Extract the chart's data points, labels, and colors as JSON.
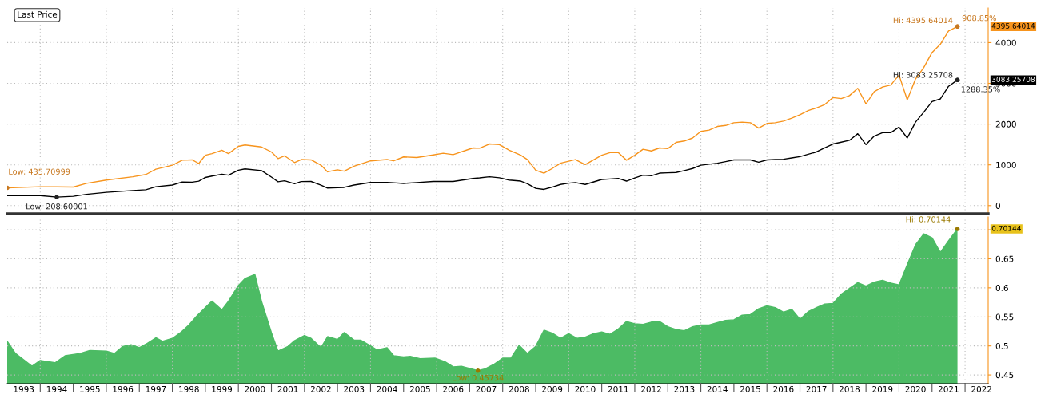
{
  "chart_data": [
    {
      "type": "area",
      "xlim": [
        1993.0,
        2022.7
      ],
      "ylim": [
        -200,
        4850
      ],
      "xticks": [
        {
          "value": 1994,
          "label": null
        },
        {
          "value": 1996,
          "label": null
        },
        {
          "value": 1998,
          "label": null
        },
        {
          "value": 2000,
          "label": null
        },
        {
          "value": 2002,
          "label": null
        },
        {
          "value": 2004,
          "label": null
        },
        {
          "value": 2006,
          "label": null
        },
        {
          "value": 2008,
          "label": null
        },
        {
          "value": 2010,
          "label": null
        },
        {
          "value": 2012,
          "label": null
        },
        {
          "value": 2014,
          "label": null
        },
        {
          "value": 2016,
          "label": null
        },
        {
          "value": 2018,
          "label": null
        },
        {
          "value": 2020,
          "label": null
        },
        {
          "value": 2022,
          "label": null
        }
      ],
      "yticks": [
        0,
        1000,
        2000,
        3000,
        4000
      ],
      "tick_labels": "y",
      "grid": true,
      "x": [
        1993.0,
        1994.0,
        1994.5,
        1995.0,
        1995.4,
        1996.0,
        1996.8,
        1997.2,
        1997.5,
        1998.0,
        1998.3,
        1998.6,
        1998.8,
        1999.0,
        1999.2,
        1999.5,
        1999.7,
        2000.0,
        2000.2,
        2000.7,
        2001.0,
        2001.2,
        2001.4,
        2001.7,
        2001.9,
        2002.2,
        2002.5,
        2002.7,
        2003.0,
        2003.2,
        2003.5,
        2004.0,
        2004.5,
        2004.7,
        2005.0,
        2005.4,
        2005.9,
        2006.2,
        2006.5,
        2007.1,
        2007.3,
        2007.6,
        2007.9,
        2008.2,
        2008.55,
        2008.75,
        2009.0,
        2009.25,
        2009.5,
        2009.75,
        2010.0,
        2010.2,
        2010.5,
        2011.0,
        2011.25,
        2011.5,
        2011.75,
        2012.0,
        2012.25,
        2012.5,
        2012.75,
        2013.0,
        2013.25,
        2013.5,
        2013.75,
        2014.0,
        2014.25,
        2014.5,
        2014.75,
        2015.0,
        2015.25,
        2015.5,
        2015.75,
        2016.0,
        2016.25,
        2016.5,
        2016.75,
        2017.0,
        2017.25,
        2017.5,
        2017.75,
        2018.0,
        2018.25,
        2018.5,
        2018.75,
        2019.0,
        2019.25,
        2019.5,
        2019.75,
        2020.0,
        2020.25,
        2020.5,
        2020.75,
        2021.0,
        2021.25,
        2021.5,
        2021.77
      ],
      "series": [
        {
          "type": "line",
          "color": "#f7941d",
          "values": [
            435.70999,
            463,
            460,
            455,
            545,
            626,
            707,
            764,
            894,
            992,
            1114,
            1122,
            1033,
            1236,
            1276,
            1358,
            1276,
            1455,
            1488,
            1439,
            1317,
            1154,
            1220,
            1057,
            1130,
            1122,
            992,
            829,
            878,
            846,
            967,
            1098,
            1130,
            1098,
            1195,
            1179,
            1244,
            1285,
            1252,
            1415,
            1407,
            1512,
            1496,
            1358,
            1236,
            1130,
            870,
            797,
            911,
            1041,
            1089,
            1130,
            1008,
            1236,
            1301,
            1301,
            1114,
            1236,
            1382,
            1341,
            1415,
            1398,
            1553,
            1585,
            1659,
            1821,
            1854,
            1943,
            1967,
            2033,
            2049,
            2033,
            1902,
            2016,
            2033,
            2073,
            2146,
            2228,
            2333,
            2398,
            2480,
            2650,
            2626,
            2699,
            2878,
            2496,
            2797,
            2911,
            2959,
            3203,
            2593,
            3106,
            3390,
            3756,
            3959,
            4285,
            4395.64014
          ]
        },
        {
          "type": "line",
          "color": "#000000",
          "values": [
            244,
            244,
            208.60001,
            228,
            276,
            325,
            370,
            390,
            463,
            504,
            580,
            575,
            600,
            691,
            725,
            772,
            748,
            870,
            900,
            860,
            700,
            585,
            610,
            537,
            590,
            593,
            504,
            431,
            440,
            447,
            504,
            569,
            569,
            560,
            545,
            565,
            593,
            593,
            593,
            667,
            680,
            707,
            683,
            626,
            602,
            537,
            423,
            398,
            455,
            520,
            550,
            565,
            520,
            642,
            655,
            667,
            602,
            680,
            748,
            732,
            797,
            805,
            813,
            860,
            911,
            992,
            1015,
            1041,
            1080,
            1122,
            1122,
            1122,
            1065,
            1122,
            1130,
            1138,
            1170,
            1203,
            1260,
            1317,
            1415,
            1512,
            1557,
            1602,
            1764,
            1496,
            1707,
            1789,
            1789,
            1927,
            1659,
            2049,
            2293,
            2553,
            2618,
            2927,
            3083.25708
          ]
        }
      ],
      "annotations": [
        "Last Price",
        {
          "text": "Hi: 4395.64014",
          "x": 2021.77,
          "y": 4395.64014
        },
        {
          "text": "908.85%",
          "x": 2021.77,
          "y": 4395.64014
        },
        "4395.64014",
        {
          "text": "Hi: 3083.25708",
          "x": 2021.77,
          "y": 3083.25708
        },
        {
          "text": "1288.35%",
          "x": 2021.77,
          "y": 3083.25708
        },
        "3083.25708",
        {
          "text": "Low: 208.60001",
          "x": 1994.5,
          "y": 208.60001
        },
        {
          "text": "Low: 435.70999",
          "x": 1993.0,
          "y": 435.70999
        }
      ]
    },
    {
      "type": "area",
      "xlim": [
        1993.0,
        2022.7
      ],
      "ylim": [
        0.435,
        0.722
      ],
      "xticks": [
        {
          "value": 1993.5,
          "label": "1993"
        },
        {
          "value": 1994,
          "label": null
        },
        {
          "value": 1994.5,
          "label": "1994"
        },
        {
          "value": 1995,
          "label": null
        },
        {
          "value": 1995.5,
          "label": "1995"
        },
        {
          "value": 1996,
          "label": null
        },
        {
          "value": 1996.5,
          "label": "1996"
        },
        {
          "value": 1997,
          "label": null
        },
        {
          "value": 1997.5,
          "label": "1997"
        },
        {
          "value": 1998,
          "label": null
        },
        {
          "value": 1998.5,
          "label": "1998"
        },
        {
          "value": 1999,
          "label": null
        },
        {
          "value": 1999.5,
          "label": "1999"
        },
        {
          "value": 2000,
          "label": null
        },
        {
          "value": 2000.5,
          "label": "2000"
        },
        {
          "value": 2001,
          "label": null
        },
        {
          "value": 2001.5,
          "label": "2001"
        },
        {
          "value": 2002,
          "label": null
        },
        {
          "value": 2002.5,
          "label": "2002"
        },
        {
          "value": 2003,
          "label": null
        },
        {
          "value": 2003.5,
          "label": "2003"
        },
        {
          "value": 2004,
          "label": null
        },
        {
          "value": 2004.5,
          "label": "2004"
        },
        {
          "value": 2005,
          "label": null
        },
        {
          "value": 2005.5,
          "label": "2005"
        },
        {
          "value": 2006,
          "label": null
        },
        {
          "value": 2006.5,
          "label": "2006"
        },
        {
          "value": 2007,
          "label": null
        },
        {
          "value": 2007.5,
          "label": "2007"
        },
        {
          "value": 2008,
          "label": null
        },
        {
          "value": 2008.5,
          "label": "2008"
        },
        {
          "value": 2009,
          "label": null
        },
        {
          "value": 2009.5,
          "label": "2009"
        },
        {
          "value": 2010,
          "label": null
        },
        {
          "value": 2010.5,
          "label": "2010"
        },
        {
          "value": 2011,
          "label": null
        },
        {
          "value": 2011.5,
          "label": "2011"
        },
        {
          "value": 2012,
          "label": null
        },
        {
          "value": 2012.5,
          "label": "2012"
        },
        {
          "value": 2013,
          "label": null
        },
        {
          "value": 2013.5,
          "label": "2013"
        },
        {
          "value": 2014,
          "label": null
        },
        {
          "value": 2014.5,
          "label": "2014"
        },
        {
          "value": 2015,
          "label": null
        },
        {
          "value": 2015.5,
          "label": "2015"
        },
        {
          "value": 2016,
          "label": null
        },
        {
          "value": 2016.5,
          "label": "2016"
        },
        {
          "value": 2017,
          "label": null
        },
        {
          "value": 2017.5,
          "label": "2017"
        },
        {
          "value": 2018,
          "label": null
        },
        {
          "value": 2018.5,
          "label": "2018"
        },
        {
          "value": 2019,
          "label": null
        },
        {
          "value": 2019.5,
          "label": "2019"
        },
        {
          "value": 2020,
          "label": null
        },
        {
          "value": 2020.5,
          "label": "2020"
        },
        {
          "value": 2021,
          "label": null
        },
        {
          "value": 2021.5,
          "label": "2021"
        },
        {
          "value": 2022,
          "label": null
        },
        {
          "value": 2022.5,
          "label": "2022"
        }
      ],
      "yticks": [
        0.45,
        0.5,
        0.55,
        0.6,
        0.65,
        {
          "value": 0.7,
          "label": null
        }
      ],
      "grid": true,
      "series": [
        {
          "color": "#4cbb64",
          "x": [
            1993.0,
            1993.25,
            1993.75,
            1994.0,
            1994.45,
            1994.75,
            1995.2,
            1995.5,
            1996.0,
            1996.25,
            1996.5,
            1996.75,
            1997.0,
            1997.2,
            1997.5,
            1997.7,
            1998.0,
            1998.25,
            1998.5,
            1998.75,
            1999.0,
            1999.2,
            1999.5,
            1999.7,
            2000.0,
            2000.2,
            2000.5,
            2000.7,
            2001.0,
            2001.2,
            2001.5,
            2001.7,
            2002.0,
            2002.2,
            2002.5,
            2002.7,
            2003.0,
            2003.2,
            2003.5,
            2003.7,
            2004.0,
            2004.2,
            2004.5,
            2004.7,
            2005.0,
            2005.2,
            2005.5,
            2005.95,
            2006.25,
            2006.5,
            2006.75,
            2007.25,
            2007.45,
            2007.75,
            2008.0,
            2008.25,
            2008.5,
            2008.75,
            2009.0,
            2009.25,
            2009.5,
            2009.75,
            2010.0,
            2010.25,
            2010.5,
            2010.75,
            2011.0,
            2011.25,
            2011.5,
            2011.75,
            2012.0,
            2012.25,
            2012.5,
            2012.75,
            2013.0,
            2013.25,
            2013.5,
            2013.75,
            2014.0,
            2014.25,
            2014.5,
            2014.75,
            2015.0,
            2015.25,
            2015.5,
            2015.75,
            2016.0,
            2016.25,
            2016.5,
            2016.75,
            2017.0,
            2017.25,
            2017.5,
            2017.75,
            2018.0,
            2018.25,
            2018.5,
            2018.75,
            2019.0,
            2019.25,
            2019.5,
            2019.75,
            2020.0,
            2020.25,
            2020.5,
            2020.75,
            2021.0,
            2021.25,
            2021.5,
            2021.77
          ],
          "values": [
            0.508,
            0.487,
            0.465,
            0.475,
            0.471,
            0.483,
            0.487,
            0.492,
            0.491,
            0.487,
            0.499,
            0.502,
            0.497,
            0.503,
            0.514,
            0.508,
            0.513,
            0.523,
            0.536,
            0.552,
            0.566,
            0.577,
            0.562,
            0.577,
            0.604,
            0.616,
            0.623,
            0.577,
            0.523,
            0.491,
            0.499,
            0.509,
            0.518,
            0.513,
            0.497,
            0.516,
            0.511,
            0.523,
            0.51,
            0.51,
            0.5,
            0.493,
            0.497,
            0.483,
            0.481,
            0.482,
            0.478,
            0.479,
            0.473,
            0.464,
            0.465,
            0.45734,
            0.46,
            0.469,
            0.479,
            0.479,
            0.501,
            0.487,
            0.499,
            0.527,
            0.522,
            0.513,
            0.521,
            0.513,
            0.515,
            0.521,
            0.524,
            0.52,
            0.529,
            0.542,
            0.538,
            0.537,
            0.541,
            0.542,
            0.533,
            0.528,
            0.526,
            0.533,
            0.536,
            0.536,
            0.54,
            0.544,
            0.545,
            0.553,
            0.554,
            0.564,
            0.569,
            0.566,
            0.558,
            0.563,
            0.546,
            0.559,
            0.566,
            0.572,
            0.573,
            0.589,
            0.599,
            0.609,
            0.603,
            0.61,
            0.613,
            0.608,
            0.605,
            0.64,
            0.674,
            0.693,
            0.686,
            0.661,
            0.681,
            0.70144
          ]
        }
      ],
      "annotations": [
        {
          "text": "Hi: 0.70144",
          "x": 2021.77,
          "y": 0.70144
        },
        "0.70144",
        {
          "text": "Low: 0.45734",
          "x": 2007.25,
          "y": 0.45734
        }
      ]
    }
  ]
}
